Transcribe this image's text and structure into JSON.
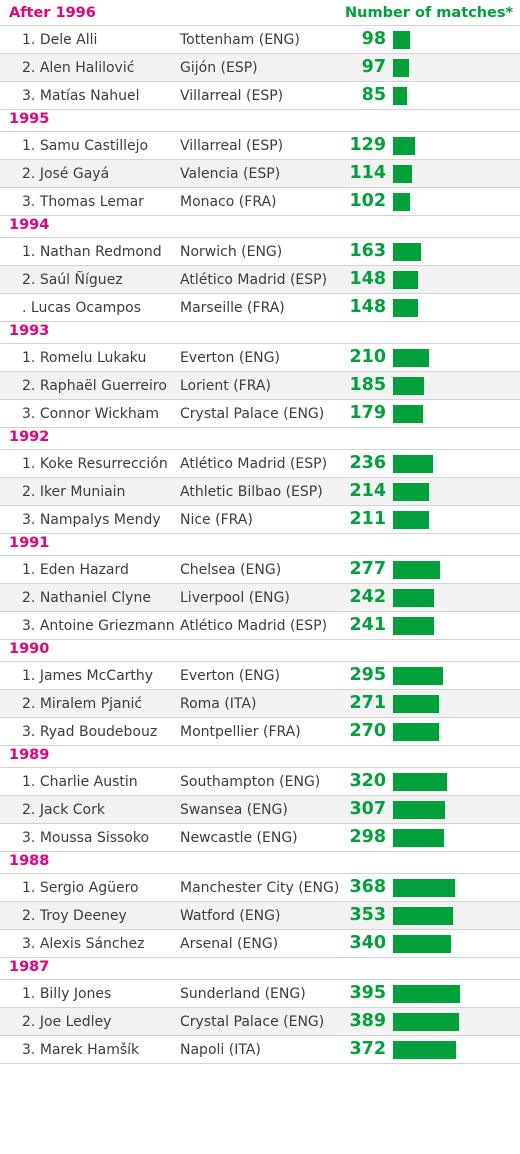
{
  "chart_data": {
    "type": "bar",
    "orientation": "horizontal",
    "column_title": "Number of matches*",
    "value_max": 395,
    "colors": {
      "bar": "#00a13a",
      "group_label": "#e6007e",
      "text": "#3c3c3c",
      "row_alt": "#f2f2f2"
    },
    "groups": [
      {
        "label": "After 1996",
        "rows": [
          {
            "rank": "1.",
            "player": "Dele Alli",
            "club": "Tottenham (ENG)",
            "value": 98
          },
          {
            "rank": "2.",
            "player": "Alen Halilović",
            "club": "Gijón (ESP)",
            "value": 97
          },
          {
            "rank": "3.",
            "player": "Matías Nahuel",
            "club": "Villarreal (ESP)",
            "value": 85
          }
        ]
      },
      {
        "label": "1995",
        "rows": [
          {
            "rank": "1.",
            "player": "Samu Castillejo",
            "club": "Villarreal (ESP)",
            "value": 129
          },
          {
            "rank": "2.",
            "player": "José Gayá",
            "club": "Valencia (ESP)",
            "value": 114
          },
          {
            "rank": "3.",
            "player": "Thomas Lemar",
            "club": "Monaco (FRA)",
            "value": 102
          }
        ]
      },
      {
        "label": "1994",
        "rows": [
          {
            "rank": "1.",
            "player": "Nathan Redmond",
            "club": "Norwich (ENG)",
            "value": 163
          },
          {
            "rank": "2.",
            "player": "Saúl Ñíguez",
            "club": "Atlético Madrid (ESP)",
            "value": 148
          },
          {
            "rank": ".",
            "player": "Lucas Ocampos",
            "club": "Marseille (FRA)",
            "value": 148
          }
        ]
      },
      {
        "label": "1993",
        "rows": [
          {
            "rank": "1.",
            "player": "Romelu Lukaku",
            "club": "Everton (ENG)",
            "value": 210
          },
          {
            "rank": "2.",
            "player": "Raphaël Guerreiro",
            "club": "Lorient (FRA)",
            "value": 185
          },
          {
            "rank": "3.",
            "player": "Connor Wickham",
            "club": "Crystal Palace (ENG)",
            "value": 179
          }
        ]
      },
      {
        "label": "1992",
        "rows": [
          {
            "rank": "1.",
            "player": "Koke Resurrección",
            "club": "Atlético Madrid (ESP)",
            "value": 236
          },
          {
            "rank": "2.",
            "player": "Iker Muniain",
            "club": "Athletic Bilbao (ESP)",
            "value": 214
          },
          {
            "rank": "3.",
            "player": "Nampalys Mendy",
            "club": "Nice (FRA)",
            "value": 211
          }
        ]
      },
      {
        "label": "1991",
        "rows": [
          {
            "rank": "1.",
            "player": "Eden Hazard",
            "club": "Chelsea (ENG)",
            "value": 277
          },
          {
            "rank": "2.",
            "player": "Nathaniel Clyne",
            "club": "Liverpool (ENG)",
            "value": 242
          },
          {
            "rank": "3.",
            "player": "Antoine Griezmann",
            "club": "Atlético Madrid (ESP)",
            "value": 241
          }
        ]
      },
      {
        "label": "1990",
        "rows": [
          {
            "rank": "1.",
            "player": "James McCarthy",
            "club": "Everton (ENG)",
            "value": 295
          },
          {
            "rank": "2.",
            "player": "Miralem Pjanić",
            "club": "Roma (ITA)",
            "value": 271
          },
          {
            "rank": "3.",
            "player": "Ryad Boudebouz",
            "club": "Montpellier (FRA)",
            "value": 270
          }
        ]
      },
      {
        "label": "1989",
        "rows": [
          {
            "rank": "1.",
            "player": "Charlie Austin",
            "club": "Southampton (ENG)",
            "value": 320
          },
          {
            "rank": "2.",
            "player": "Jack Cork",
            "club": "Swansea (ENG)",
            "value": 307
          },
          {
            "rank": "3.",
            "player": "Moussa Sissoko",
            "club": "Newcastle (ENG)",
            "value": 298
          }
        ]
      },
      {
        "label": "1988",
        "rows": [
          {
            "rank": "1.",
            "player": "Sergio Agüero",
            "club": "Manchester City (ENG)",
            "value": 368
          },
          {
            "rank": "2.",
            "player": "Troy Deeney",
            "club": "Watford (ENG)",
            "value": 353
          },
          {
            "rank": "3.",
            "player": "Alexis Sánchez",
            "club": "Arsenal (ENG)",
            "value": 340
          }
        ]
      },
      {
        "label": "1987",
        "rows": [
          {
            "rank": "1.",
            "player": "Billy Jones",
            "club": "Sunderland (ENG)",
            "value": 395
          },
          {
            "rank": "2.",
            "player": "Joe Ledley",
            "club": "Crystal Palace (ENG)",
            "value": 389
          },
          {
            "rank": "3.",
            "player": "Marek Hamšík",
            "club": "Napoli (ITA)",
            "value": 372
          }
        ]
      }
    ]
  }
}
